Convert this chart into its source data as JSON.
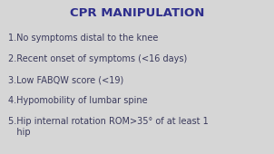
{
  "title": "CPR MANIPULATION",
  "title_color": "#2e2e8c",
  "title_fontsize": 9.5,
  "background_color": "#d6d6d6",
  "text_color": "#3a3a5c",
  "items": [
    "1.No symptoms distal to the knee",
    "2.Recent onset of symptoms (<16 days)",
    "3.Low FABQW score (<19)",
    "4.Hypomobility of lumbar spine",
    "5.Hip internal rotation ROM>35° of at least 1\n   hip"
  ],
  "item_fontsize": 7.0,
  "figwidth": 3.02,
  "figheight": 1.7,
  "dpi": 100
}
